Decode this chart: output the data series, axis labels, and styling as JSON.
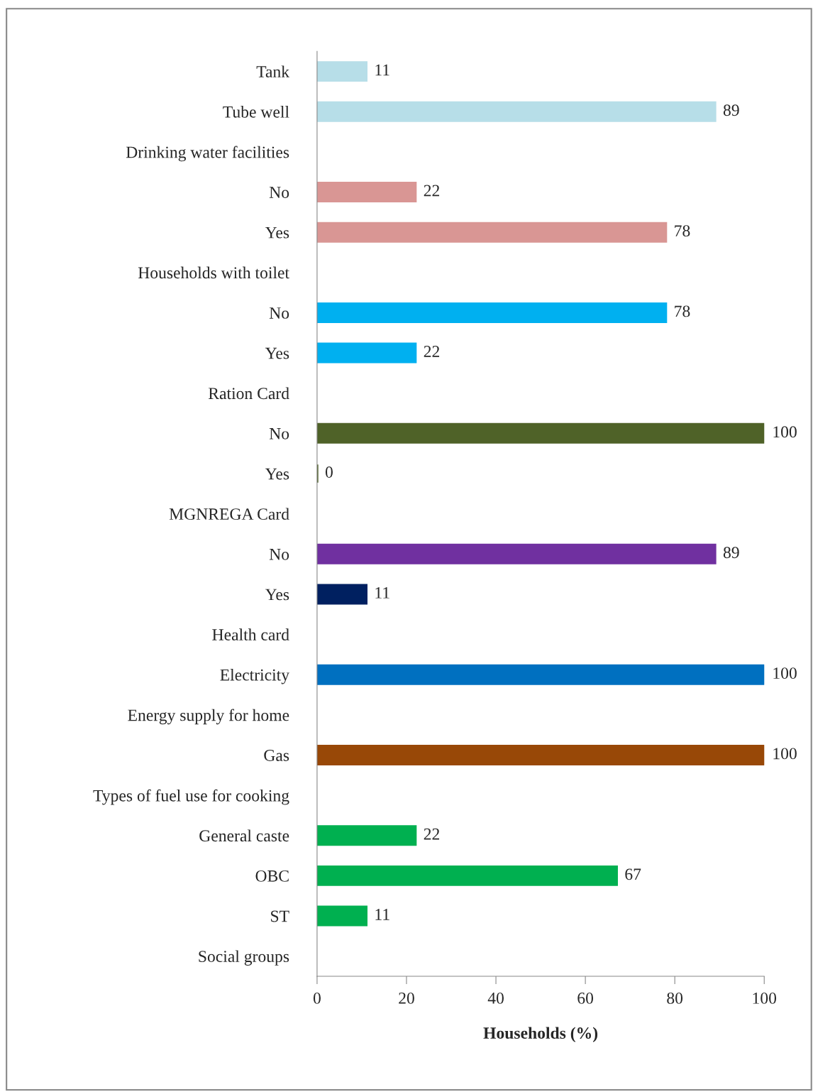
{
  "chart_data": {
    "type": "bar",
    "orientation": "horizontal",
    "xlabel": "Households (%)",
    "categories": [
      "Tank",
      "Tube well",
      "Drinking water facilities",
      "No",
      "Yes",
      "Households with toilet",
      "No",
      "Yes",
      "Ration Card",
      "No",
      "Yes",
      "MGNREGA Card",
      "No",
      "Yes",
      "Health card",
      "Electricity",
      "Energy supply for home",
      "Gas",
      "Types of fuel use for cooking",
      "General caste",
      "OBC",
      "ST",
      "Social groups"
    ],
    "values": [
      11,
      89,
      null,
      22,
      78,
      null,
      78,
      22,
      null,
      100,
      0,
      null,
      89,
      11,
      null,
      100,
      null,
      100,
      null,
      22,
      67,
      11,
      null
    ],
    "colors": [
      "#b7dee8",
      "#b7dee8",
      "#b7dee8",
      "#d99694",
      "#d99694",
      "#d99694",
      "#00b0f0",
      "#00b0f0",
      "#00b0f0",
      "#4f6228",
      "#4f6228",
      "#4f6228",
      "#7030a0",
      "#002060",
      "#002060",
      "#0070c0",
      "#0070c0",
      "#984807",
      "#984807",
      "#00b050",
      "#00b050",
      "#00b050",
      "#00b050"
    ],
    "xlim": [
      0,
      100
    ],
    "xticks": [
      0,
      20,
      40,
      60,
      80,
      100
    ],
    "data_labels": true,
    "grid": false
  }
}
